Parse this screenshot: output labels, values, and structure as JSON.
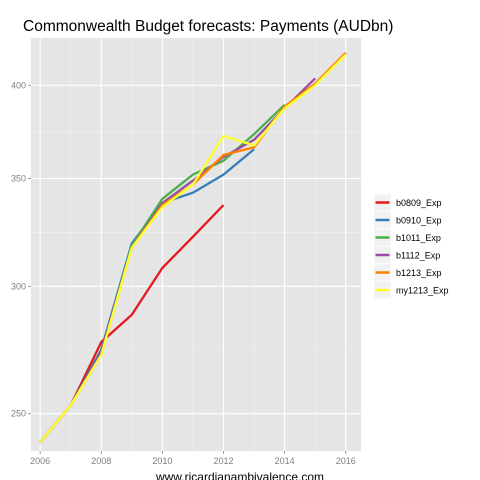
{
  "chart_data": {
    "type": "line",
    "title": "Commonwealth Budget forecasts: Payments (AUDbn)",
    "xlabel": "www.ricardianambivalence.com",
    "ylabel": "",
    "y_scale": "log",
    "xlim": [
      2005.7,
      2016.5
    ],
    "ylim": [
      237,
      428
    ],
    "x_ticks": [
      2006,
      2008,
      2010,
      2012,
      2014,
      2016
    ],
    "y_ticks": [
      250,
      300,
      350,
      400
    ],
    "grid": true,
    "legend_position": "right",
    "series": [
      {
        "name": "b0809_Exp",
        "color": "#e41a1c",
        "x": [
          2006,
          2007,
          2008,
          2009,
          2010,
          2011,
          2012
        ],
        "y": [
          240,
          253,
          277,
          288,
          308,
          322,
          337
        ]
      },
      {
        "name": "b0910_Exp",
        "color": "#377eb8",
        "x": [
          2006,
          2007,
          2008,
          2009,
          2010,
          2011,
          2012,
          2013
        ],
        "y": [
          240,
          253,
          274,
          319,
          338,
          343,
          352,
          365
        ]
      },
      {
        "name": "b1011_Exp",
        "color": "#4daf4a",
        "x": [
          2006,
          2007,
          2008,
          2009,
          2010,
          2011,
          2012,
          2013,
          2014
        ],
        "y": [
          240,
          253,
          273,
          318,
          340,
          352,
          359,
          373,
          389
        ]
      },
      {
        "name": "b1112_Exp",
        "color": "#984ea3",
        "x": [
          2006,
          2007,
          2008,
          2009,
          2010,
          2011,
          2012,
          2013,
          2014,
          2015
        ],
        "y": [
          240,
          253,
          273,
          317,
          338,
          349,
          361,
          370,
          387,
          404
        ]
      },
      {
        "name": "b1213_Exp",
        "color": "#ff7f00",
        "x": [
          2006,
          2007,
          2008,
          2009,
          2010,
          2011,
          2012,
          2013,
          2014,
          2015,
          2016
        ],
        "y": [
          240,
          253,
          272,
          317,
          337,
          347,
          362,
          366,
          388,
          401,
          419
        ]
      },
      {
        "name": "my1213_Exp",
        "color": "#ffff33",
        "x": [
          2006,
          2007,
          2008,
          2009,
          2010,
          2011,
          2012,
          2013,
          2014,
          2015,
          2016
        ],
        "y": [
          240,
          253,
          272,
          317,
          336,
          347,
          372,
          367,
          387,
          400,
          418
        ]
      }
    ]
  }
}
